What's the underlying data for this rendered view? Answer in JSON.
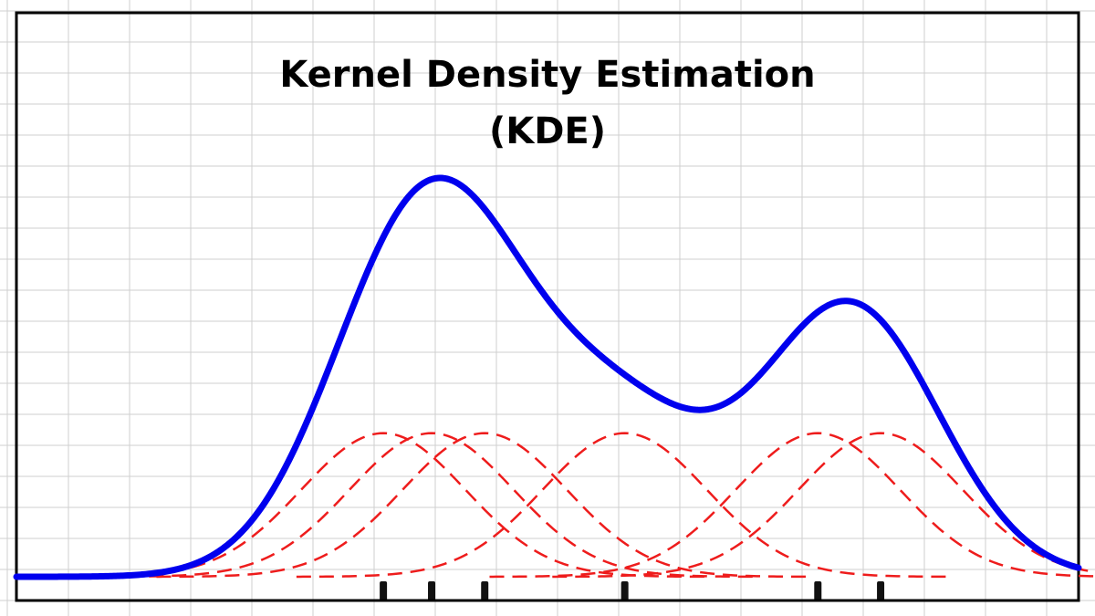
{
  "title": {
    "line1": "Kernel Density Estimation",
    "line2": "(KDE)"
  },
  "colors": {
    "background": "#ffffff",
    "grid": "#cfcfcf",
    "frame": "#000000",
    "density_curve": "#0000ee",
    "kernels": "#ee1c1c",
    "rug": "#111111"
  },
  "chart_data": {
    "type": "line",
    "title": "Kernel Density Estimation (KDE)",
    "xlabel": "",
    "ylabel": "",
    "grid": true,
    "xlim": [
      -1,
      10
    ],
    "ylim": [
      0,
      1
    ],
    "kernel": "gaussian",
    "bandwidth": 0.85,
    "samples": [
      2.8,
      3.3,
      3.85,
      5.3,
      7.3,
      7.95
    ],
    "kernel_peak": 0.36,
    "density_peak_y": 1.0,
    "density_peak_x": 3.5
  }
}
